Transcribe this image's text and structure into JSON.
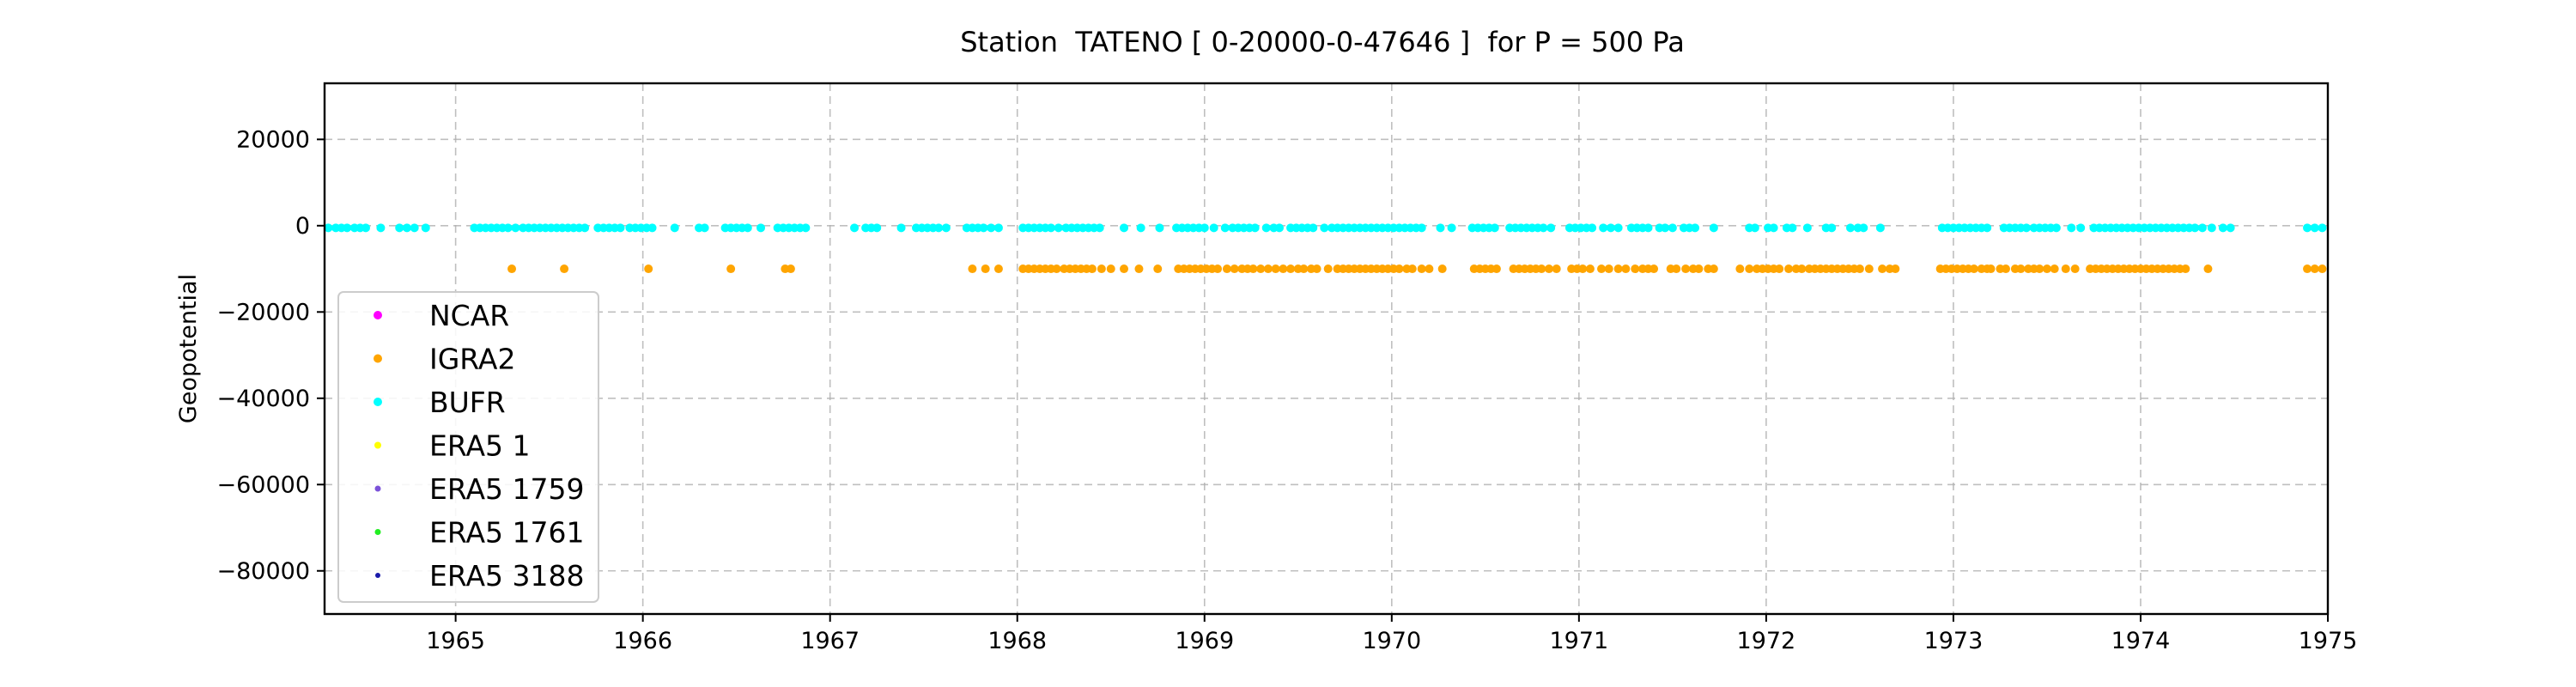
{
  "chart_data": {
    "type": "scatter",
    "title": "Station  TATENO [ 0-20000-0-47646 ]  for P = 500 Pa",
    "xlabel": "",
    "ylabel": "Geopotential",
    "xlim": [
      1964.3,
      1975.0
    ],
    "ylim": [
      -90000,
      33000
    ],
    "xticks": [
      1965,
      1966,
      1967,
      1968,
      1969,
      1970,
      1971,
      1972,
      1973,
      1974,
      1975
    ],
    "yticks": [
      20000,
      0,
      -20000,
      -40000,
      -60000,
      -80000
    ],
    "ytick_labels": [
      "20000",
      "0",
      "−20000",
      "−40000",
      "−60000",
      "−80000"
    ],
    "grid": true,
    "legend_position": "lower-left",
    "series": [
      {
        "name": "NCAR",
        "color": "#ff00ff",
        "marker_size": 5,
        "points": []
      },
      {
        "name": "IGRA2",
        "color": "#ffa500",
        "marker_size": 5,
        "value": -10000,
        "x": [
          1965.3,
          1965.58,
          1966.03,
          1966.47,
          1966.76,
          1966.79,
          1967.76,
          1967.83,
          1967.9,
          1968.03,
          1968.06,
          1968.09,
          1968.12,
          1968.15,
          1968.18,
          1968.21,
          1968.25,
          1968.28,
          1968.31,
          1968.34,
          1968.37,
          1968.4,
          1968.45,
          1968.5,
          1968.57,
          1968.65,
          1968.75,
          1968.86,
          1968.89,
          1968.92,
          1968.95,
          1968.98,
          1969.01,
          1969.04,
          1969.07,
          1969.12,
          1969.16,
          1969.2,
          1969.23,
          1969.26,
          1969.3,
          1969.34,
          1969.38,
          1969.42,
          1969.46,
          1969.5,
          1969.53,
          1969.57,
          1969.6,
          1969.66,
          1969.71,
          1969.74,
          1969.77,
          1969.8,
          1969.83,
          1969.86,
          1969.89,
          1969.92,
          1969.95,
          1969.98,
          1970.01,
          1970.04,
          1970.08,
          1970.11,
          1970.16,
          1970.2,
          1970.27,
          1970.44,
          1970.47,
          1970.5,
          1970.53,
          1970.56,
          1970.65,
          1970.68,
          1970.71,
          1970.74,
          1970.77,
          1970.8,
          1970.84,
          1970.88,
          1970.96,
          1970.99,
          1971.02,
          1971.06,
          1971.12,
          1971.16,
          1971.21,
          1971.25,
          1971.3,
          1971.34,
          1971.37,
          1971.4,
          1971.49,
          1971.52,
          1971.57,
          1971.61,
          1971.64,
          1971.69,
          1971.72,
          1971.86,
          1971.91,
          1971.95,
          1971.98,
          1972.01,
          1972.04,
          1972.07,
          1972.12,
          1972.16,
          1972.19,
          1972.23,
          1972.26,
          1972.29,
          1972.32,
          1972.35,
          1972.38,
          1972.41,
          1972.44,
          1972.47,
          1972.5,
          1972.55,
          1972.62,
          1972.66,
          1972.69,
          1972.93,
          1972.96,
          1972.99,
          1973.02,
          1973.05,
          1973.08,
          1973.11,
          1973.15,
          1973.18,
          1973.2,
          1973.25,
          1973.28,
          1973.33,
          1973.36,
          1973.4,
          1973.43,
          1973.46,
          1973.5,
          1973.54,
          1973.6,
          1973.65,
          1973.73,
          1973.76,
          1973.79,
          1973.82,
          1973.85,
          1973.88,
          1973.91,
          1973.94,
          1973.97,
          1974.0,
          1974.03,
          1974.06,
          1974.09,
          1974.12,
          1974.15,
          1974.18,
          1974.21,
          1974.24,
          1974.36,
          1974.89,
          1974.93,
          1974.97
        ]
      },
      {
        "name": "BUFR",
        "color": "#00ffff",
        "marker_size": 5,
        "value": -500,
        "x": [
          1964.32,
          1964.36,
          1964.39,
          1964.42,
          1964.46,
          1964.49,
          1964.52,
          1964.6,
          1964.7,
          1964.74,
          1964.78,
          1964.84,
          1965.1,
          1965.13,
          1965.16,
          1965.19,
          1965.22,
          1965.25,
          1965.28,
          1965.32,
          1965.36,
          1965.39,
          1965.42,
          1965.45,
          1965.48,
          1965.51,
          1965.54,
          1965.57,
          1965.6,
          1965.63,
          1965.66,
          1965.69,
          1965.76,
          1965.79,
          1965.82,
          1965.85,
          1965.88,
          1965.93,
          1965.96,
          1965.99,
          1966.02,
          1966.05,
          1966.17,
          1966.3,
          1966.33,
          1966.44,
          1966.47,
          1966.5,
          1966.53,
          1966.56,
          1966.63,
          1966.72,
          1966.75,
          1966.78,
          1966.81,
          1966.84,
          1966.87,
          1967.13,
          1967.19,
          1967.22,
          1967.25,
          1967.38,
          1967.46,
          1967.49,
          1967.52,
          1967.55,
          1967.58,
          1967.62,
          1967.73,
          1967.76,
          1967.79,
          1967.82,
          1967.86,
          1967.9,
          1968.03,
          1968.06,
          1968.09,
          1968.12,
          1968.15,
          1968.18,
          1968.22,
          1968.26,
          1968.29,
          1968.32,
          1968.35,
          1968.38,
          1968.41,
          1968.44,
          1968.57,
          1968.66,
          1968.76,
          1968.85,
          1968.88,
          1968.91,
          1968.94,
          1968.97,
          1969.0,
          1969.05,
          1969.11,
          1969.15,
          1969.18,
          1969.21,
          1969.24,
          1969.27,
          1969.33,
          1969.37,
          1969.4,
          1969.46,
          1969.49,
          1969.52,
          1969.55,
          1969.58,
          1969.64,
          1969.68,
          1969.71,
          1969.74,
          1969.77,
          1969.8,
          1969.83,
          1969.86,
          1969.89,
          1969.92,
          1969.95,
          1969.98,
          1970.01,
          1970.04,
          1970.07,
          1970.1,
          1970.13,
          1970.16,
          1970.26,
          1970.32,
          1970.43,
          1970.46,
          1970.49,
          1970.52,
          1970.55,
          1970.63,
          1970.66,
          1970.69,
          1970.72,
          1970.75,
          1970.78,
          1970.81,
          1970.85,
          1970.95,
          1970.98,
          1971.01,
          1971.04,
          1971.07,
          1971.13,
          1971.17,
          1971.21,
          1971.28,
          1971.31,
          1971.34,
          1971.37,
          1971.43,
          1971.46,
          1971.5,
          1971.56,
          1971.59,
          1971.62,
          1971.72,
          1971.91,
          1971.94,
          1972.01,
          1972.04,
          1972.11,
          1972.14,
          1972.22,
          1972.32,
          1972.35,
          1972.45,
          1972.49,
          1972.52,
          1972.61,
          1972.94,
          1972.97,
          1973.0,
          1973.03,
          1973.06,
          1973.09,
          1973.12,
          1973.15,
          1973.18,
          1973.27,
          1973.3,
          1973.33,
          1973.36,
          1973.39,
          1973.43,
          1973.46,
          1973.49,
          1973.52,
          1973.55,
          1973.63,
          1973.68,
          1973.75,
          1973.78,
          1973.81,
          1973.84,
          1973.87,
          1973.9,
          1973.93,
          1973.96,
          1973.99,
          1974.02,
          1974.05,
          1974.08,
          1974.11,
          1974.14,
          1974.17,
          1974.2,
          1974.23,
          1974.26,
          1974.29,
          1974.33,
          1974.38,
          1974.44,
          1974.48,
          1974.89,
          1974.93,
          1974.97
        ]
      },
      {
        "name": "ERA5 1",
        "color": "#ffff00",
        "marker_size": 4,
        "points": []
      },
      {
        "name": "ERA5 1759",
        "color": "#7b52d9",
        "marker_size": 3.5,
        "points": []
      },
      {
        "name": "ERA5 1761",
        "color": "#22ee22",
        "marker_size": 3.5,
        "points": []
      },
      {
        "name": "ERA5 3188",
        "color": "#1a1aaa",
        "marker_size": 3,
        "points": []
      }
    ]
  }
}
